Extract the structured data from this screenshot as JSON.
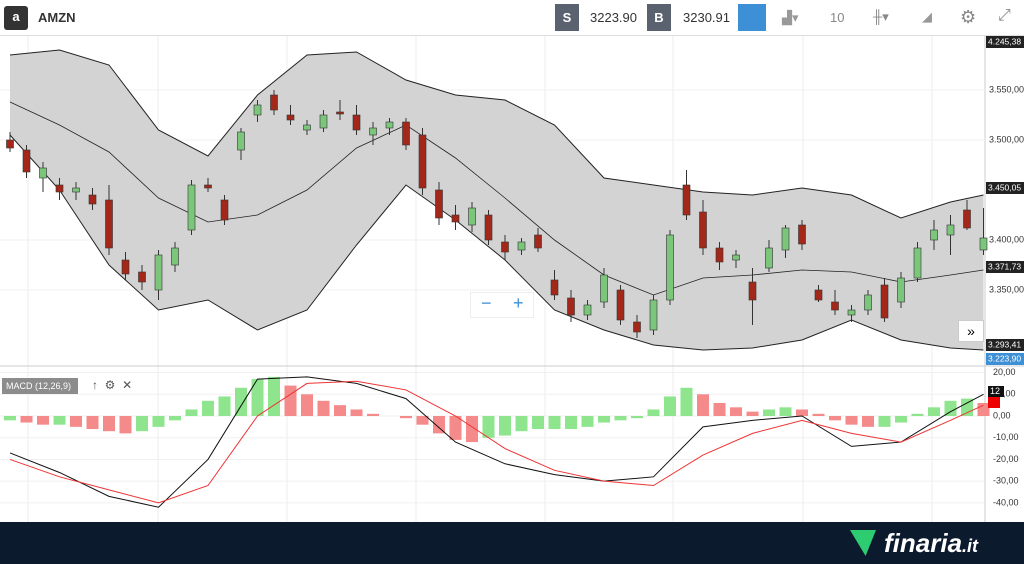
{
  "toolbar": {
    "symbol": "AMZN",
    "sell_label": "S",
    "sell_price": "3223.90",
    "buy_label": "B",
    "buy_price": "3230.91",
    "interval": "10"
  },
  "chart_data": [
    {
      "type": "candlestick",
      "ohlc": [
        [
          3500,
          3508,
          3488,
          3492
        ],
        [
          3490,
          3495,
          3462,
          3468
        ],
        [
          3462,
          3478,
          3448,
          3472
        ],
        [
          3455,
          3462,
          3440,
          3448
        ],
        [
          3448,
          3458,
          3440,
          3452
        ],
        [
          3445,
          3452,
          3430,
          3436
        ],
        [
          3440,
          3455,
          3385,
          3392
        ],
        [
          3380,
          3388,
          3360,
          3366
        ],
        [
          3368,
          3375,
          3350,
          3358
        ],
        [
          3350,
          3390,
          3340,
          3385
        ],
        [
          3375,
          3398,
          3368,
          3392
        ],
        [
          3410,
          3460,
          3405,
          3455
        ],
        [
          3455,
          3462,
          3448,
          3452
        ],
        [
          3440,
          3445,
          3415,
          3420
        ],
        [
          3490,
          3512,
          3480,
          3508
        ],
        [
          3525,
          3540,
          3518,
          3535
        ],
        [
          3545,
          3550,
          3525,
          3530
        ],
        [
          3525,
          3535,
          3515,
          3520
        ],
        [
          3510,
          3520,
          3505,
          3515
        ],
        [
          3512,
          3530,
          3508,
          3525
        ],
        [
          3528,
          3540,
          3520,
          3526
        ],
        [
          3525,
          3535,
          3505,
          3510
        ],
        [
          3505,
          3518,
          3495,
          3512
        ],
        [
          3512,
          3522,
          3505,
          3518
        ],
        [
          3518,
          3522,
          3490,
          3495
        ],
        [
          3505,
          3512,
          3445,
          3452
        ],
        [
          3450,
          3458,
          3415,
          3422
        ],
        [
          3425,
          3435,
          3410,
          3418
        ],
        [
          3415,
          3438,
          3408,
          3432
        ],
        [
          3425,
          3430,
          3395,
          3400
        ],
        [
          3398,
          3405,
          3380,
          3388
        ],
        [
          3390,
          3402,
          3385,
          3398
        ],
        [
          3405,
          3412,
          3388,
          3392
        ],
        [
          3360,
          3370,
          3340,
          3345
        ],
        [
          3342,
          3350,
          3318,
          3325
        ],
        [
          3325,
          3340,
          3320,
          3335
        ],
        [
          3338,
          3372,
          3332,
          3365
        ],
        [
          3350,
          3355,
          3315,
          3320
        ],
        [
          3318,
          3325,
          3302,
          3308
        ],
        [
          3310,
          3345,
          3305,
          3340
        ],
        [
          3340,
          3410,
          3335,
          3405
        ],
        [
          3455,
          3470,
          3420,
          3425
        ],
        [
          3428,
          3440,
          3385,
          3392
        ],
        [
          3392,
          3398,
          3370,
          3378
        ],
        [
          3380,
          3390,
          3372,
          3385
        ],
        [
          3358,
          3372,
          3315,
          3340
        ],
        [
          3372,
          3400,
          3368,
          3392
        ],
        [
          3390,
          3415,
          3382,
          3412
        ],
        [
          3415,
          3420,
          3390,
          3396
        ],
        [
          3350,
          3355,
          3338,
          3340
        ],
        [
          3338,
          3350,
          3325,
          3330
        ],
        [
          3325,
          3335,
          3318,
          3330
        ],
        [
          3330,
          3350,
          3325,
          3345
        ],
        [
          3355,
          3362,
          3318,
          3322
        ],
        [
          3338,
          3368,
          3332,
          3362
        ],
        [
          3362,
          3398,
          3358,
          3392
        ],
        [
          3400,
          3420,
          3390,
          3410
        ],
        [
          3405,
          3425,
          3385,
          3415
        ],
        [
          3430,
          3440,
          3410,
          3412
        ],
        [
          3390,
          3432,
          3385,
          3402
        ]
      ],
      "bands": {
        "x": [
          0,
          3,
          6,
          9,
          12,
          15,
          18,
          21,
          24,
          27,
          30,
          33,
          36,
          39,
          42,
          45,
          48,
          51,
          54,
          57,
          59
        ],
        "upper": [
          3585,
          3590,
          3575,
          3510,
          3484,
          3545,
          3585,
          3588,
          3560,
          3545,
          3540,
          3515,
          3462,
          3455,
          3448,
          3445,
          3452,
          3445,
          3422,
          3438,
          3445
        ],
        "middle": [
          3538,
          3515,
          3488,
          3442,
          3418,
          3425,
          3450,
          3492,
          3515,
          3482,
          3442,
          3400,
          3365,
          3345,
          3362,
          3365,
          3370,
          3368,
          3358,
          3365,
          3370
        ],
        "lower": [
          3505,
          3450,
          3375,
          3330,
          3340,
          3310,
          3330,
          3395,
          3455,
          3420,
          3380,
          3330,
          3310,
          3295,
          3290,
          3292,
          3300,
          3320,
          3300,
          3292,
          3290
        ]
      },
      "ylim": [
        3274,
        3604
      ],
      "yticks": [
        {
          "value": 3550,
          "label": "3.550,00"
        },
        {
          "value": 3500,
          "label": "3.500,00"
        },
        {
          "value": 3400,
          "label": "3.400,00"
        },
        {
          "value": 3350,
          "label": "3.350,00"
        }
      ],
      "price_badges": [
        "4.245,38",
        "3.450,05",
        "3.371,73",
        "3.293,41",
        "3.223,90"
      ]
    },
    {
      "type": "macd",
      "title": "MACD (12,26,9)",
      "histogram": [
        -2,
        -3,
        -4,
        -4,
        -5,
        -6,
        -7,
        -8,
        -7,
        -5,
        -2,
        3,
        7,
        9,
        13,
        17,
        18,
        14,
        10,
        7,
        5,
        3,
        1,
        0,
        -1,
        -4,
        -8,
        -11,
        -12,
        -10,
        -9,
        -7,
        -6,
        -6,
        -6,
        -5,
        -3,
        -2,
        -1,
        3,
        9,
        13,
        10,
        6,
        4,
        2,
        3,
        4,
        3,
        1,
        -2,
        -4,
        -5,
        -5,
        -3,
        1,
        4,
        7,
        8,
        6
      ],
      "x": [
        0,
        3,
        6,
        9,
        12,
        15,
        18,
        21,
        24,
        27,
        30,
        33,
        36,
        39,
        42,
        45,
        48,
        51,
        54,
        57,
        59
      ],
      "macd": [
        -17,
        -26,
        -37,
        -42,
        -20,
        17,
        18,
        15,
        8,
        -12,
        -22,
        -27,
        -30,
        -28,
        -5,
        -2,
        0,
        -14,
        -12,
        2,
        10
      ],
      "signal": [
        -20,
        -28,
        -34,
        -40,
        -32,
        0,
        15,
        16,
        12,
        0,
        -15,
        -25,
        -30,
        -32,
        -18,
        -8,
        -2,
        -8,
        -12,
        -2,
        5
      ],
      "ylim": [
        -48.8,
        22.1
      ],
      "yticks": [
        {
          "value": 20,
          "label": "20,00"
        },
        {
          "value": 10,
          "label": "10,00"
        },
        {
          "value": 0,
          "label": "0,00"
        },
        {
          "value": -10,
          "label": "-10,00"
        },
        {
          "value": -20,
          "label": "-20,00"
        },
        {
          "value": -30,
          "label": "-30,00"
        },
        {
          "value": -40,
          "label": "-40,00"
        }
      ],
      "badge": "12"
    }
  ],
  "footer": {
    "brand": "finaria",
    "tld": ".it"
  }
}
